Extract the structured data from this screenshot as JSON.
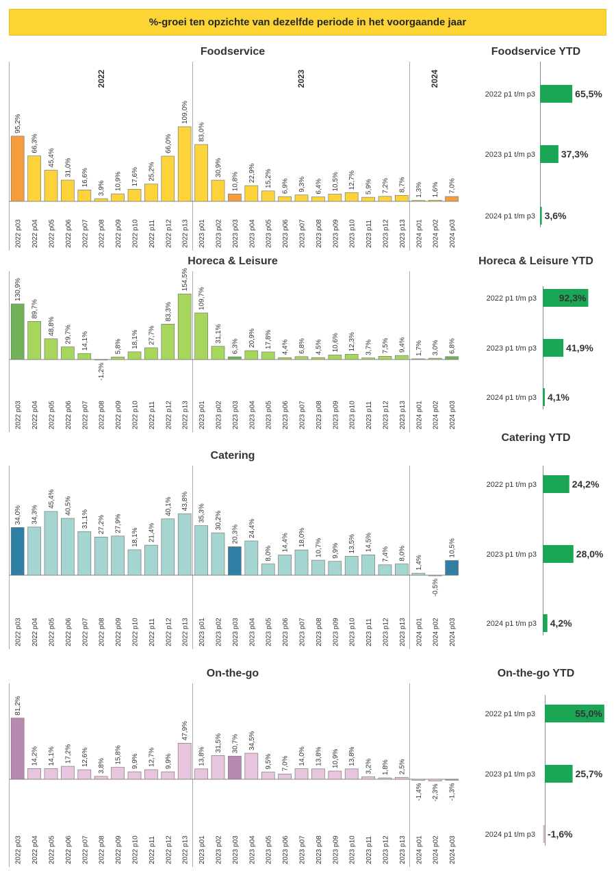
{
  "banner": "%-groei ten opzichte van dezelfde periode in het voorgaande jaar",
  "periods": [
    "2022 p03",
    "2022 p04",
    "2022 p05",
    "2022 p06",
    "2022 p07",
    "2022 p08",
    "2022 p09",
    "2022 p10",
    "2022 p11",
    "2022 p12",
    "2022 p13",
    "2023 p01",
    "2023 p02",
    "2023 p03",
    "2023 p04",
    "2023 p05",
    "2023 p06",
    "2023 p07",
    "2023 p08",
    "2023 p09",
    "2023 p10",
    "2023 p11",
    "2023 p12",
    "2023 p13",
    "2024 p01",
    "2024 p02",
    "2024 p03"
  ],
  "years": [
    "2022",
    "2023",
    "2024"
  ],
  "ytd_categories": [
    "2022 p1 t/m p3",
    "2023 p1 t/m p3",
    "2024 p1 t/m p3"
  ],
  "chart_data": [
    {
      "type": "bar",
      "title": "Foodservice",
      "categories": [
        "2022 p03",
        "2022 p04",
        "2022 p05",
        "2022 p06",
        "2022 p07",
        "2022 p08",
        "2022 p09",
        "2022 p10",
        "2022 p11",
        "2022 p12",
        "2022 p13",
        "2023 p01",
        "2023 p02",
        "2023 p03",
        "2023 p04",
        "2023 p05",
        "2023 p06",
        "2023 p07",
        "2023 p08",
        "2023 p09",
        "2023 p10",
        "2023 p11",
        "2023 p12",
        "2023 p13",
        "2024 p01",
        "2024 p02",
        "2024 p03"
      ],
      "values": [
        95.2,
        66.3,
        45.4,
        31.0,
        16.6,
        3.9,
        10.9,
        17.6,
        25.2,
        66.0,
        109.0,
        83.0,
        30.9,
        10.8,
        22.9,
        15.2,
        6.9,
        9.3,
        6.4,
        10.5,
        12.7,
        5.9,
        7.2,
        8.7,
        1.3,
        1.6,
        7.0
      ],
      "labels": [
        "95,2%",
        "66,3%",
        "45,4%",
        "31,0%",
        "16,6%",
        "3,9%",
        "10,9%",
        "17,6%",
        "25,2%",
        "66,0%",
        "109,0%",
        "83,0%",
        "30,9%",
        "10,8%",
        "22,9%",
        "15,2%",
        "6,9%",
        "9,3%",
        "6,4%",
        "10,5%",
        "12,7%",
        "5,9%",
        "7,2%",
        "8,7%",
        "1,3%",
        "1,6%",
        "7,0%"
      ],
      "highlight": [
        0,
        13,
        26
      ],
      "color": "#fdd33c",
      "highlight_color": "#f59d3d"
    },
    {
      "type": "bar",
      "title": "Foodservice YTD",
      "categories": [
        "2022 p1 t/m p3",
        "2023 p1 t/m p3",
        "2024 p1 t/m p3"
      ],
      "values": [
        65.5,
        37.3,
        3.6
      ],
      "labels": [
        "65,5%",
        "37,3%",
        "3,6%"
      ],
      "color": "#1aa654"
    },
    {
      "type": "bar",
      "title": "Horeca & Leisure",
      "categories": [
        "2022 p03",
        "2022 p04",
        "2022 p05",
        "2022 p06",
        "2022 p07",
        "2022 p08",
        "2022 p09",
        "2022 p10",
        "2022 p11",
        "2022 p12",
        "2022 p13",
        "2023 p01",
        "2023 p02",
        "2023 p03",
        "2023 p04",
        "2023 p05",
        "2023 p06",
        "2023 p07",
        "2023 p08",
        "2023 p09",
        "2023 p10",
        "2023 p11",
        "2023 p12",
        "2023 p13",
        "2024 p01",
        "2024 p02",
        "2024 p03"
      ],
      "values": [
        130.9,
        89.7,
        48.8,
        29.7,
        14.1,
        -1.2,
        5.8,
        18.1,
        27.7,
        83.3,
        154.5,
        109.7,
        31.1,
        6.3,
        20.9,
        17.8,
        4.4,
        6.8,
        4.5,
        10.6,
        12.3,
        3.7,
        7.5,
        9.4,
        1.7,
        3.0,
        6.8
      ],
      "labels": [
        "130,9%",
        "89,7%",
        "48,8%",
        "29,7%",
        "14,1%",
        "-1,2%",
        "5,8%",
        "18,1%",
        "27,7%",
        "83,3%",
        "154,5%",
        "109,7%",
        "31,1%",
        "6,3%",
        "20,9%",
        "17,8%",
        "4,4%",
        "6,8%",
        "4,5%",
        "10,6%",
        "12,3%",
        "3,7%",
        "7,5%",
        "9,4%",
        "1,7%",
        "3,0%",
        "6,8%"
      ],
      "highlight": [
        0,
        13,
        26
      ],
      "color": "#a6d65c",
      "highlight_color": "#72b158"
    },
    {
      "type": "bar",
      "title": "Horeca & Leisure YTD",
      "categories": [
        "2022 p1 t/m p3",
        "2023 p1 t/m p3",
        "2024 p1 t/m p3"
      ],
      "values": [
        92.3,
        41.9,
        4.1
      ],
      "labels": [
        "92,3%",
        "41,9%",
        "4,1%"
      ],
      "color": "#1aa654"
    },
    {
      "type": "bar",
      "title": "Catering",
      "categories": [
        "2022 p03",
        "2022 p04",
        "2022 p05",
        "2022 p06",
        "2022 p07",
        "2022 p08",
        "2022 p09",
        "2022 p10",
        "2022 p11",
        "2022 p12",
        "2022 p13",
        "2023 p01",
        "2023 p02",
        "2023 p03",
        "2023 p04",
        "2023 p05",
        "2023 p06",
        "2023 p07",
        "2023 p08",
        "2023 p09",
        "2023 p10",
        "2023 p11",
        "2023 p12",
        "2023 p13",
        "2024 p01",
        "2024 p02",
        "2024 p03"
      ],
      "values": [
        34.0,
        34.3,
        45.4,
        40.5,
        31.1,
        27.2,
        27.9,
        18.1,
        21.4,
        40.1,
        43.8,
        35.3,
        30.2,
        20.3,
        24.4,
        8.0,
        14.4,
        18.0,
        10.7,
        9.9,
        13.5,
        14.5,
        7.4,
        8.0,
        1.4,
        -0.5,
        10.5
      ],
      "labels": [
        "34,0%",
        "34,3%",
        "45,4%",
        "40,5%",
        "31,1%",
        "27,2%",
        "27,9%",
        "18,1%",
        "21,4%",
        "40,1%",
        "43,8%",
        "35,3%",
        "30,2%",
        "20,3%",
        "24,4%",
        "8,0%",
        "14,4%",
        "18,0%",
        "10,7%",
        "9,9%",
        "13,5%",
        "14,5%",
        "7,4%",
        "8,0%",
        "1,4%",
        "-0,5%",
        "10,5%"
      ],
      "highlight": [
        0,
        13,
        26
      ],
      "color": "#a5d5d1",
      "highlight_color": "#2f7ea4"
    },
    {
      "type": "bar",
      "title": "Catering YTD",
      "categories": [
        "2022 p1 t/m p3",
        "2023 p1 t/m p3",
        "2024 p1 t/m p3"
      ],
      "values": [
        24.2,
        28.0,
        4.2
      ],
      "labels": [
        "24,2%",
        "28,0%",
        "4,2%"
      ],
      "color": "#1aa654"
    },
    {
      "type": "bar",
      "title": "On-the-go",
      "categories": [
        "2022 p03",
        "2022 p04",
        "2022 p05",
        "2022 p06",
        "2022 p07",
        "2022 p08",
        "2022 p09",
        "2022 p10",
        "2022 p11",
        "2022 p12",
        "2022 p13",
        "2023 p01",
        "2023 p02",
        "2023 p03",
        "2023 p04",
        "2023 p05",
        "2023 p06",
        "2023 p07",
        "2023 p08",
        "2023 p09",
        "2023 p10",
        "2023 p11",
        "2023 p12",
        "2023 p13",
        "2024 p01",
        "2024 p02",
        "2024 p03"
      ],
      "values": [
        81.2,
        14.2,
        14.1,
        17.2,
        12.6,
        3.8,
        15.8,
        9.9,
        12.7,
        9.9,
        47.9,
        13.8,
        31.5,
        30.7,
        34.5,
        9.5,
        7.0,
        14.0,
        13.8,
        10.9,
        13.8,
        3.2,
        1.8,
        2.5,
        -1.4,
        -2.3,
        -1.3
      ],
      "labels": [
        "81,2%",
        "14,2%",
        "14,1%",
        "17,2%",
        "12,6%",
        "3,8%",
        "15,8%",
        "9,9%",
        "12,7%",
        "9,9%",
        "47,9%",
        "13,8%",
        "31,5%",
        "30,7%",
        "34,5%",
        "9,5%",
        "7,0%",
        "14,0%",
        "13,8%",
        "10,9%",
        "13,8%",
        "3,2%",
        "1,8%",
        "2,5%",
        "-1,4%",
        "-2,3%",
        "-1,3%"
      ],
      "highlight": [
        0,
        13,
        26
      ],
      "color": "#e8c5df",
      "highlight_color": "#b889b1"
    },
    {
      "type": "bar",
      "title": "On-the-go YTD",
      "categories": [
        "2022 p1 t/m p3",
        "2023 p1 t/m p3",
        "2024 p1 t/m p3"
      ],
      "values": [
        55.0,
        25.7,
        -1.6
      ],
      "labels": [
        "55,0%",
        "25,7%",
        "-1,6%"
      ],
      "color": "#1aa654",
      "negative_color": "#d7bcc5"
    }
  ]
}
